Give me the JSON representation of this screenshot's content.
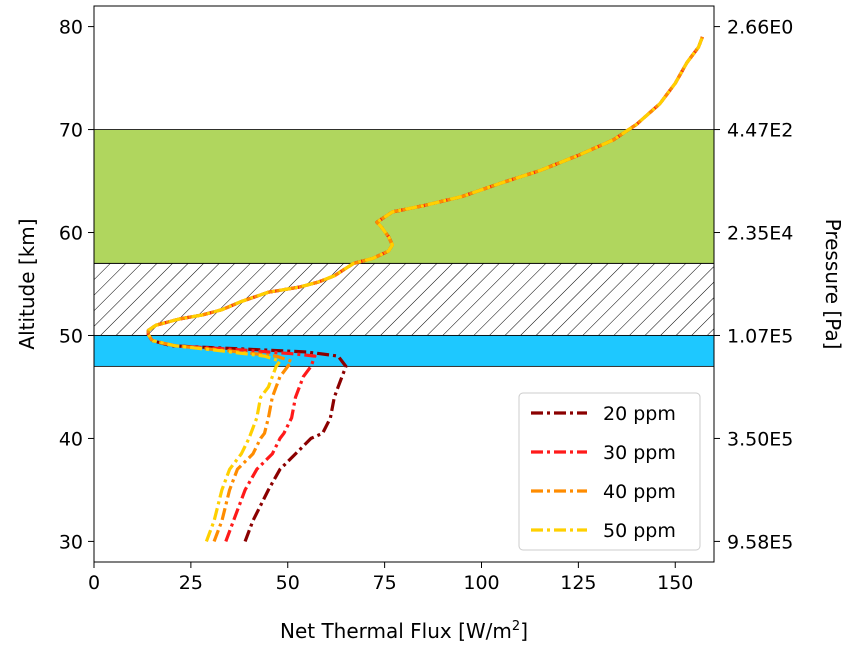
{
  "chart_data": {
    "type": "line",
    "xlabel": "Net Thermal Flux [W/m",
    "xlabel_sup": "2",
    "xlabel_suffix": "]",
    "ylabel": "Altitude [km]",
    "ylabel_right": "Pressure [Pa]",
    "xlim": [
      0,
      160
    ],
    "ylim": [
      28,
      82
    ],
    "x_ticks": [
      0,
      25,
      50,
      75,
      100,
      125,
      150
    ],
    "y_ticks": [
      30,
      40,
      50,
      60,
      70,
      80
    ],
    "right_ticks": [
      {
        "altitude": 30,
        "label": "9.58E5"
      },
      {
        "altitude": 40,
        "label": "3.50E5"
      },
      {
        "altitude": 50,
        "label": "1.07E5"
      },
      {
        "altitude": 60,
        "label": "2.35E4"
      },
      {
        "altitude": 70,
        "label": "4.47E2"
      },
      {
        "altitude": 80,
        "label": "2.66E0"
      }
    ],
    "bands": [
      {
        "y0": 57,
        "y1": 70,
        "color": "#b0d65e",
        "style": "fill"
      },
      {
        "y0": 50,
        "y1": 57,
        "color": "#000000",
        "style": "hatch"
      },
      {
        "y0": 47,
        "y1": 50,
        "color": "#1ec8ff",
        "style": "fill"
      }
    ],
    "upper_profile": [
      [
        15,
        49.5
      ],
      [
        14,
        50.1
      ],
      [
        14,
        50.5
      ],
      [
        16,
        51
      ],
      [
        22,
        51.6
      ],
      [
        28,
        52
      ],
      [
        33,
        52.5
      ],
      [
        38,
        53.3
      ],
      [
        45,
        54.2
      ],
      [
        53,
        54.7
      ],
      [
        58,
        55.2
      ],
      [
        62,
        55.8
      ],
      [
        67,
        57
      ],
      [
        72,
        57.5
      ],
      [
        76,
        58.2
      ],
      [
        77,
        58.8
      ],
      [
        76,
        59.6
      ],
      [
        74,
        60.6
      ],
      [
        73,
        61
      ],
      [
        77,
        62
      ],
      [
        85,
        62.6
      ],
      [
        95,
        63.5
      ],
      [
        105,
        64.8
      ],
      [
        115,
        66
      ],
      [
        125,
        67.5
      ],
      [
        134,
        69
      ],
      [
        140,
        70.5
      ],
      [
        146,
        72.5
      ],
      [
        150,
        74.5
      ],
      [
        153,
        76.5
      ],
      [
        156,
        78
      ],
      [
        157,
        79
      ]
    ],
    "series": [
      {
        "name": "20 ppm",
        "color": "#8b0000",
        "values": [
          [
            39,
            30
          ],
          [
            41,
            32
          ],
          [
            45,
            35
          ],
          [
            48,
            37
          ],
          [
            52,
            38.5
          ],
          [
            56,
            40
          ],
          [
            59,
            40.5
          ],
          [
            61,
            42
          ],
          [
            62,
            44
          ],
          [
            63,
            45
          ],
          [
            64,
            46
          ],
          [
            65,
            47
          ],
          [
            63,
            48
          ],
          [
            55,
            48.4
          ],
          [
            38,
            48.7
          ],
          [
            20,
            49
          ],
          [
            15,
            49.5
          ]
        ]
      },
      {
        "name": "30 ppm",
        "color": "#ff1a1a",
        "values": [
          [
            34,
            30
          ],
          [
            36,
            32
          ],
          [
            39,
            35
          ],
          [
            42,
            37
          ],
          [
            46,
            38.5
          ],
          [
            48,
            40
          ],
          [
            49,
            40.5
          ],
          [
            51,
            42
          ],
          [
            52,
            44
          ],
          [
            53,
            45
          ],
          [
            54,
            46
          ],
          [
            56,
            47
          ],
          [
            57,
            48
          ],
          [
            52,
            48.2
          ],
          [
            38,
            48.6
          ],
          [
            21,
            49
          ],
          [
            15,
            49.5
          ]
        ]
      },
      {
        "name": "40 ppm",
        "color": "#ff8c00",
        "values": [
          [
            31,
            30
          ],
          [
            33,
            32
          ],
          [
            35,
            35
          ],
          [
            37,
            37
          ],
          [
            41,
            38.5
          ],
          [
            43,
            40
          ],
          [
            44,
            40.5
          ],
          [
            45,
            42
          ],
          [
            46,
            44
          ],
          [
            47,
            45
          ],
          [
            48,
            46
          ],
          [
            50,
            47
          ],
          [
            51,
            47.5
          ],
          [
            47,
            48
          ],
          [
            35,
            48.5
          ],
          [
            21,
            49
          ],
          [
            15,
            49.5
          ]
        ]
      },
      {
        "name": "50 ppm",
        "color": "#ffd000",
        "values": [
          [
            29,
            30
          ],
          [
            31,
            32
          ],
          [
            33,
            35
          ],
          [
            35,
            37
          ],
          [
            38,
            38.5
          ],
          [
            40,
            40
          ],
          [
            40.5,
            40.5
          ],
          [
            42,
            42
          ],
          [
            43,
            44
          ],
          [
            45,
            45
          ],
          [
            46,
            46
          ],
          [
            47,
            47
          ],
          [
            48,
            47.5
          ],
          [
            44,
            48
          ],
          [
            33,
            48.5
          ],
          [
            21,
            49
          ],
          [
            15,
            49.5
          ]
        ]
      }
    ],
    "legend_position": "bottom-right",
    "grid": false
  }
}
